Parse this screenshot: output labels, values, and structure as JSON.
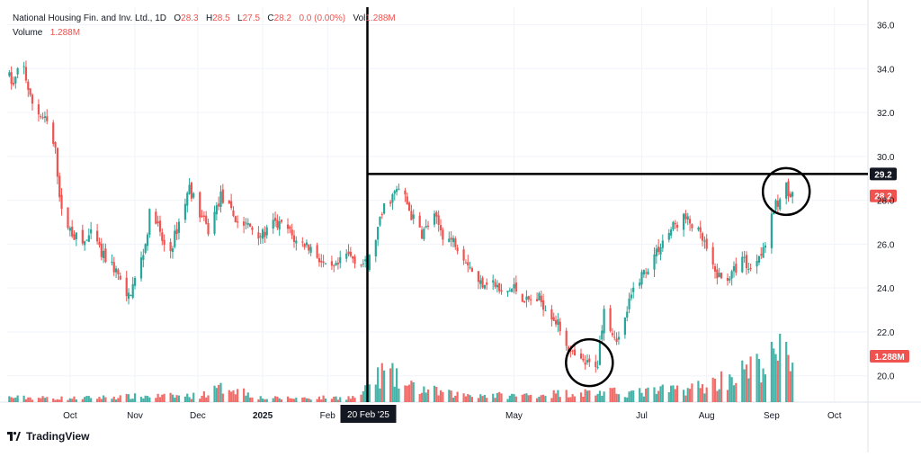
{
  "legend": {
    "symbol": "National Housing Fin. and Inv. Ltd., 1D",
    "o_label": "O",
    "o": "28.3",
    "h_label": "H",
    "h": "28.5",
    "l_label": "L",
    "l": "27.5",
    "c_label": "C",
    "c": "28.2",
    "change": "0.0 (0.00%)",
    "vol_label": "Vol",
    "vol": "1.288M",
    "volume_label": "Volume",
    "volume": "1.288M"
  },
  "branding": "TradingView",
  "colors": {
    "up": "#26a69a",
    "down": "#ef5350",
    "axis_text": "#131722",
    "grid": "#f0f3fa",
    "annotation": "#000000"
  },
  "chart_data": {
    "type": "candlestick",
    "y_ticks": [
      "36.0",
      "34.0",
      "32.0",
      "30.0",
      "28.0",
      "26.0",
      "24.0",
      "22.0",
      "20.0"
    ],
    "ylim": [
      18.8,
      36.8
    ],
    "x_ticks": [
      {
        "date": "2024-10-01",
        "label": "Oct"
      },
      {
        "date": "2024-11-01",
        "label": "Nov"
      },
      {
        "date": "2024-12-01",
        "label": "Dec"
      },
      {
        "date": "2025-01-01",
        "label": "2025"
      },
      {
        "date": "2025-02-01",
        "label": "Feb"
      },
      {
        "date": "2025-05-01",
        "label": "May"
      },
      {
        "date": "2025-07-01",
        "label": "Jul"
      },
      {
        "date": "2025-08-01",
        "label": "Aug"
      },
      {
        "date": "2025-09-01",
        "label": "Sep"
      },
      {
        "date": "2025-10-01",
        "label": "Oct"
      }
    ],
    "x_range": [
      "2024-09-01",
      "2025-10-17"
    ],
    "crosshair": {
      "date": "2025-02-20",
      "label": "20 Feb '25"
    },
    "horizontal_line": {
      "value": 29.2,
      "label": "29.2"
    },
    "last_price": {
      "value": 28.2,
      "label": "28.2"
    },
    "last_volume": {
      "label": "1.288M"
    },
    "circles": [
      {
        "date": "2025-06-06",
        "value": 20.6
      },
      {
        "date": "2025-09-08",
        "value": 28.4
      }
    ],
    "price_anchors": [
      [
        "2024-09-01",
        33.8
      ],
      [
        "2024-09-04",
        33.2
      ],
      [
        "2024-09-08",
        34.5
      ],
      [
        "2024-09-12",
        32.6
      ],
      [
        "2024-09-16",
        32.0
      ],
      [
        "2024-09-20",
        31.5
      ],
      [
        "2024-09-24",
        30.2
      ],
      [
        "2024-09-27",
        27.4
      ],
      [
        "2024-10-02",
        26.5
      ],
      [
        "2024-10-07",
        26.0
      ],
      [
        "2024-10-12",
        26.5
      ],
      [
        "2024-10-16",
        25.5
      ],
      [
        "2024-10-20",
        25.2
      ],
      [
        "2024-10-24",
        24.6
      ],
      [
        "2024-10-28",
        23.4
      ],
      [
        "2024-11-02",
        24.6
      ],
      [
        "2024-11-06",
        26.0
      ],
      [
        "2024-11-09",
        28.0
      ],
      [
        "2024-11-13",
        26.4
      ],
      [
        "2024-11-17",
        25.4
      ],
      [
        "2024-11-22",
        27.0
      ],
      [
        "2024-11-27",
        28.6
      ],
      [
        "2024-12-01",
        27.6
      ],
      [
        "2024-12-06",
        26.6
      ],
      [
        "2024-12-12",
        28.2
      ],
      [
        "2024-12-16",
        27.6
      ],
      [
        "2024-12-20",
        27.0
      ],
      [
        "2024-12-26",
        26.8
      ],
      [
        "2025-01-01",
        26.4
      ],
      [
        "2025-01-06",
        26.9
      ],
      [
        "2025-01-12",
        26.8
      ],
      [
        "2025-01-17",
        26.1
      ],
      [
        "2025-01-22",
        26.0
      ],
      [
        "2025-01-27",
        25.5
      ],
      [
        "2025-02-01",
        24.7
      ],
      [
        "2025-02-05",
        24.9
      ],
      [
        "2025-02-10",
        25.5
      ],
      [
        "2025-02-15",
        25.3
      ],
      [
        "2025-02-20",
        25.0
      ],
      [
        "2025-02-24",
        26.3
      ],
      [
        "2025-02-28",
        27.7
      ],
      [
        "2025-03-04",
        28.2
      ],
      [
        "2025-03-08",
        28.6
      ],
      [
        "2025-03-13",
        27.3
      ],
      [
        "2025-03-18",
        26.5
      ],
      [
        "2025-03-24",
        27.2
      ],
      [
        "2025-03-29",
        26.3
      ],
      [
        "2025-04-03",
        26.1
      ],
      [
        "2025-04-09",
        25.2
      ],
      [
        "2025-04-14",
        24.2
      ],
      [
        "2025-04-20",
        24.4
      ],
      [
        "2025-04-25",
        23.7
      ],
      [
        "2025-05-01",
        24.0
      ],
      [
        "2025-05-07",
        23.4
      ],
      [
        "2025-05-13",
        23.5
      ],
      [
        "2025-05-19",
        22.8
      ],
      [
        "2025-05-24",
        22.0
      ],
      [
        "2025-05-28",
        21.0
      ],
      [
        "2025-06-02",
        20.6
      ],
      [
        "2025-06-06",
        20.5
      ],
      [
        "2025-06-10",
        20.6
      ],
      [
        "2025-06-13",
        23.2
      ],
      [
        "2025-06-17",
        22.0
      ],
      [
        "2025-06-21",
        21.6
      ],
      [
        "2025-06-24",
        23.0
      ],
      [
        "2025-06-28",
        24.2
      ],
      [
        "2025-07-04",
        25.0
      ],
      [
        "2025-07-10",
        26.0
      ],
      [
        "2025-07-16",
        26.8
      ],
      [
        "2025-07-21",
        27.2
      ],
      [
        "2025-07-26",
        26.8
      ],
      [
        "2025-07-31",
        26.0
      ],
      [
        "2025-08-04",
        24.8
      ],
      [
        "2025-08-08",
        24.4
      ],
      [
        "2025-08-13",
        24.6
      ],
      [
        "2025-08-18",
        25.4
      ],
      [
        "2025-08-22",
        24.8
      ],
      [
        "2025-08-26",
        25.6
      ],
      [
        "2025-08-30",
        26.2
      ],
      [
        "2025-09-02",
        27.6
      ],
      [
        "2025-09-05",
        28.0
      ],
      [
        "2025-09-08",
        28.6
      ],
      [
        "2025-09-11",
        28.2
      ]
    ],
    "volume_anchors": [
      [
        "2024-09-01",
        0.15
      ],
      [
        "2024-10-01",
        0.12
      ],
      [
        "2024-11-01",
        0.18
      ],
      [
        "2024-12-01",
        0.2
      ],
      [
        "2024-12-16",
        0.5
      ],
      [
        "2025-01-01",
        0.12
      ],
      [
        "2025-02-15",
        0.15
      ],
      [
        "2025-02-20",
        0.4
      ],
      [
        "2025-02-27",
        0.9
      ],
      [
        "2025-03-04",
        0.8
      ],
      [
        "2025-03-10",
        0.5
      ],
      [
        "2025-04-01",
        0.25
      ],
      [
        "2025-05-01",
        0.2
      ],
      [
        "2025-06-01",
        0.3
      ],
      [
        "2025-07-01",
        0.3
      ],
      [
        "2025-08-01",
        0.5
      ],
      [
        "2025-08-12",
        0.8
      ],
      [
        "2025-08-22",
        1.0
      ],
      [
        "2025-09-01",
        1.3
      ],
      [
        "2025-09-08",
        1.6
      ],
      [
        "2025-09-11",
        1.288
      ]
    ],
    "volume_max": 2.4
  }
}
